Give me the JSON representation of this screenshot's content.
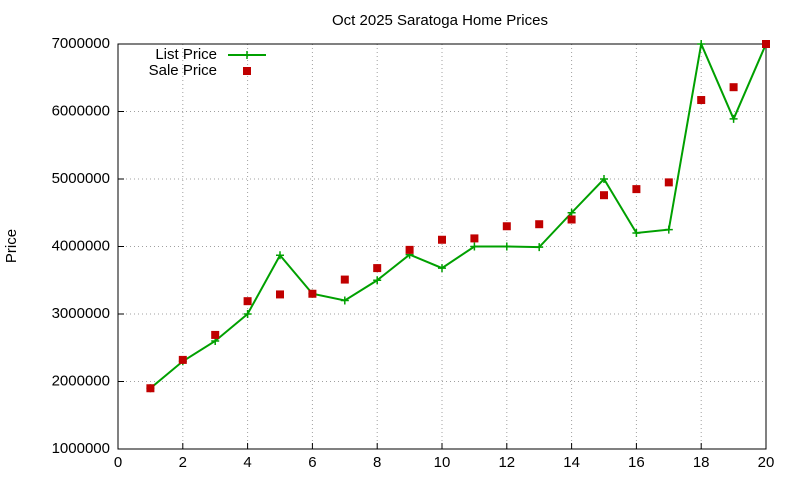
{
  "chart_data": {
    "type": "line",
    "title": "Oct 2025 Saratoga Home Prices",
    "y_label": "Price",
    "x": [
      1,
      2,
      3,
      4,
      5,
      6,
      7,
      8,
      9,
      10,
      11,
      12,
      13,
      14,
      15,
      16,
      17,
      18,
      19,
      20
    ],
    "series": [
      {
        "name": "List Price",
        "color": "#00a000",
        "mode": "lines+markers",
        "values": [
          1900000,
          2300000,
          2600000,
          3000000,
          3870000,
          3300000,
          3200000,
          3500000,
          3880000,
          3680000,
          4000000,
          4000000,
          3990000,
          4500000,
          5000000,
          4200000,
          4250000,
          7000000,
          5890000,
          7000000
        ]
      },
      {
        "name": "Sale Price",
        "color": "#c00000",
        "mode": "markers",
        "values": [
          1900000,
          2320000,
          2690000,
          3190000,
          3290000,
          3300000,
          3510000,
          3680000,
          3950000,
          4100000,
          4120000,
          4300000,
          4330000,
          4400000,
          4760000,
          4850000,
          4950000,
          6170000,
          6360000,
          7000000
        ]
      }
    ],
    "xlim": [
      0,
      20
    ],
    "xticks": [
      0,
      2,
      4,
      6,
      8,
      10,
      12,
      14,
      16,
      18,
      20
    ],
    "ylim": [
      1000000,
      7000000
    ],
    "yticks": [
      1000000,
      2000000,
      3000000,
      4000000,
      5000000,
      6000000,
      7000000
    ],
    "grid": true,
    "legend": "top-left"
  }
}
